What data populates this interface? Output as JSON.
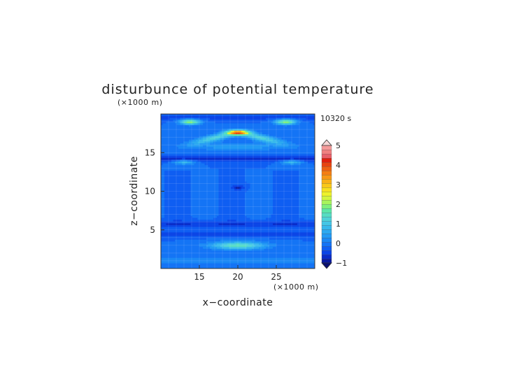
{
  "chart_data": {
    "type": "heatmap",
    "title": "disturbunce of potential temperature",
    "time_label": "10320 s",
    "xlabel": "x−coordinate",
    "ylabel": "z−coordinate",
    "x_unit": "(×1000 m)",
    "y_unit": "(×1000 m)",
    "xlim": [
      10,
      30
    ],
    "ylim": [
      0,
      20
    ],
    "x_ticks": [
      "15",
      "20",
      "25"
    ],
    "y_ticks": [
      "5",
      "10",
      "15"
    ],
    "x_tick_values": [
      15,
      20,
      25
    ],
    "y_tick_values": [
      5,
      10,
      15
    ],
    "grid": true,
    "colorbar": {
      "vmin": -1,
      "vmax": 5,
      "step": 0.25,
      "labels": [
        "5",
        "4",
        "3",
        "2",
        "1",
        "0",
        "−1"
      ],
      "label_values": [
        5,
        4,
        3,
        2,
        1,
        0,
        -1
      ],
      "colors": [
        "#0a1aa0",
        "#0b2cc8",
        "#0c45e6",
        "#0f5ef2",
        "#1474f5",
        "#1a88f5",
        "#229af4",
        "#2ca9f0",
        "#38b8ec",
        "#45c6e6",
        "#4fd3d8",
        "#56ddc2",
        "#5ce6a8",
        "#7ef07c",
        "#a8f45c",
        "#d2f540",
        "#eef22c",
        "#f8e020",
        "#fac81a",
        "#f9b018",
        "#f79816",
        "#f47e14",
        "#ef6212",
        "#e84410",
        "#e0200e",
        "#e8606a",
        "#f08080",
        "#f49a9a"
      ]
    },
    "features": [
      {
        "x": 20.0,
        "z": 17.6,
        "value": 4.0,
        "sx": 1.4,
        "sz": 0.3
      },
      {
        "x": 13.8,
        "z": 19.0,
        "value": 2.5,
        "sx": 1.3,
        "sz": 0.35
      },
      {
        "x": 26.2,
        "z": 19.0,
        "value": 2.5,
        "sx": 1.3,
        "sz": 0.35
      },
      {
        "x": 20.0,
        "z": 3.0,
        "value": 2.0,
        "sx": 3.5,
        "sz": 0.5
      },
      {
        "x": 20.0,
        "z": 10.5,
        "value": -0.8,
        "sx": 0.8,
        "sz": 0.3
      },
      {
        "x": 13.0,
        "z": 13.8,
        "value": 1.2,
        "sx": 1.5,
        "sz": 0.3
      },
      {
        "x": 27.0,
        "z": 13.8,
        "value": 1.2,
        "sx": 1.5,
        "sz": 0.3
      }
    ]
  }
}
